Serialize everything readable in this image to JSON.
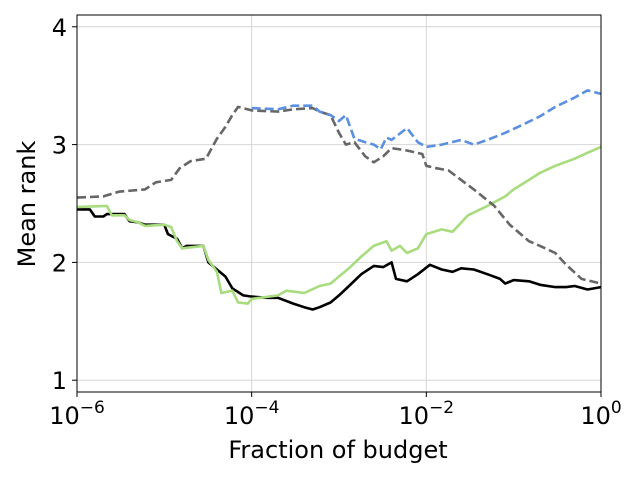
{
  "chart_data": {
    "type": "line",
    "title": "",
    "xlabel": "Fraction of budget",
    "ylabel": "Mean rank",
    "xscale": "log",
    "xlim": [
      1e-06,
      1
    ],
    "ylim": [
      0.9,
      4.1
    ],
    "grid": true,
    "legend": "none",
    "xticks": [
      {
        "value": 1e-06,
        "base": "10",
        "exp": "−6"
      },
      {
        "value": 0.0001,
        "base": "10",
        "exp": "−4"
      },
      {
        "value": 0.01,
        "base": "10",
        "exp": "−2"
      },
      {
        "value": 1,
        "base": "10",
        "exp": "0"
      }
    ],
    "yticks": [
      {
        "value": 1,
        "label": "1"
      },
      {
        "value": 2,
        "label": "2"
      },
      {
        "value": 3,
        "label": "3"
      },
      {
        "value": 4,
        "label": "4"
      }
    ],
    "series": [
      {
        "color": "#000000",
        "dash": "solid",
        "width": 2.6,
        "points": [
          [
            1e-06,
            2.45
          ],
          [
            1.4e-06,
            2.45
          ],
          [
            1.6e-06,
            2.39
          ],
          [
            2e-06,
            2.39
          ],
          [
            2.2e-06,
            2.41
          ],
          [
            3.5e-06,
            2.41
          ],
          [
            4e-06,
            2.35
          ],
          [
            5e-06,
            2.34
          ],
          [
            6e-06,
            2.32
          ],
          [
            1e-05,
            2.32
          ],
          [
            1.1e-05,
            2.24
          ],
          [
            1.4e-05,
            2.2
          ],
          [
            1.6e-05,
            2.12
          ],
          [
            1.8e-05,
            2.14
          ],
          [
            2.8e-05,
            2.14
          ],
          [
            3.2e-05,
            2.0
          ],
          [
            4e-05,
            1.94
          ],
          [
            5e-05,
            1.88
          ],
          [
            6e-05,
            1.78
          ],
          [
            8e-05,
            1.72
          ],
          [
            0.0001,
            1.71
          ],
          [
            0.00015,
            1.7
          ],
          [
            0.0002,
            1.7
          ],
          [
            0.0003,
            1.65
          ],
          [
            0.0004,
            1.62
          ],
          [
            0.0005,
            1.6
          ],
          [
            0.0006,
            1.62
          ],
          [
            0.0008,
            1.66
          ],
          [
            0.001,
            1.72
          ],
          [
            0.0013,
            1.8
          ],
          [
            0.0018,
            1.9
          ],
          [
            0.0025,
            1.97
          ],
          [
            0.0032,
            1.96
          ],
          [
            0.004,
            2.0
          ],
          [
            0.0045,
            1.86
          ],
          [
            0.006,
            1.84
          ],
          [
            0.008,
            1.9
          ],
          [
            0.011,
            1.98
          ],
          [
            0.015,
            1.94
          ],
          [
            0.02,
            1.92
          ],
          [
            0.025,
            1.95
          ],
          [
            0.035,
            1.94
          ],
          [
            0.05,
            1.9
          ],
          [
            0.07,
            1.86
          ],
          [
            0.08,
            1.82
          ],
          [
            0.1,
            1.85
          ],
          [
            0.15,
            1.84
          ],
          [
            0.2,
            1.81
          ],
          [
            0.3,
            1.79
          ],
          [
            0.4,
            1.79
          ],
          [
            0.5,
            1.8
          ],
          [
            0.7,
            1.77
          ],
          [
            1,
            1.79
          ]
        ]
      },
      {
        "color": "#a8dc7e",
        "dash": "solid",
        "width": 2.6,
        "points": [
          [
            1e-06,
            2.47
          ],
          [
            2.2e-06,
            2.48
          ],
          [
            2.5e-06,
            2.4
          ],
          [
            3.5e-06,
            2.4
          ],
          [
            4e-06,
            2.36
          ],
          [
            5e-06,
            2.34
          ],
          [
            6e-06,
            2.31
          ],
          [
            1e-05,
            2.32
          ],
          [
            1.2e-05,
            2.3
          ],
          [
            1.4e-05,
            2.18
          ],
          [
            1.6e-05,
            2.12
          ],
          [
            2.8e-05,
            2.14
          ],
          [
            3.2e-05,
            2.02
          ],
          [
            4e-05,
            1.92
          ],
          [
            4.5e-05,
            1.74
          ],
          [
            6e-05,
            1.76
          ],
          [
            7e-05,
            1.66
          ],
          [
            9e-05,
            1.65
          ],
          [
            0.0001,
            1.69
          ],
          [
            0.0002,
            1.72
          ],
          [
            0.00025,
            1.76
          ],
          [
            0.0004,
            1.74
          ],
          [
            0.0006,
            1.8
          ],
          [
            0.0008,
            1.82
          ],
          [
            0.001,
            1.88
          ],
          [
            0.0013,
            1.95
          ],
          [
            0.0018,
            2.05
          ],
          [
            0.0025,
            2.14
          ],
          [
            0.0035,
            2.18
          ],
          [
            0.004,
            2.1
          ],
          [
            0.005,
            2.14
          ],
          [
            0.006,
            2.08
          ],
          [
            0.008,
            2.12
          ],
          [
            0.01,
            2.24
          ],
          [
            0.015,
            2.28
          ],
          [
            0.02,
            2.26
          ],
          [
            0.03,
            2.4
          ],
          [
            0.05,
            2.48
          ],
          [
            0.08,
            2.56
          ],
          [
            0.1,
            2.62
          ],
          [
            0.15,
            2.7
          ],
          [
            0.2,
            2.76
          ],
          [
            0.3,
            2.82
          ],
          [
            0.5,
            2.88
          ],
          [
            0.7,
            2.93
          ],
          [
            1,
            2.98
          ]
        ]
      },
      {
        "color": "#666666",
        "dash": "dashed",
        "width": 2.6,
        "points": [
          [
            1e-06,
            2.55
          ],
          [
            2e-06,
            2.56
          ],
          [
            3e-06,
            2.6
          ],
          [
            6e-06,
            2.62
          ],
          [
            8e-06,
            2.68
          ],
          [
            1.2e-05,
            2.7
          ],
          [
            1.5e-05,
            2.8
          ],
          [
            2e-05,
            2.86
          ],
          [
            3e-05,
            2.88
          ],
          [
            4e-05,
            3.05
          ],
          [
            5e-05,
            3.15
          ],
          [
            6e-05,
            3.25
          ],
          [
            7e-05,
            3.32
          ],
          [
            0.0001,
            3.29
          ],
          [
            0.0002,
            3.28
          ],
          [
            0.0003,
            3.3
          ],
          [
            0.0005,
            3.31
          ],
          [
            0.0006,
            3.28
          ],
          [
            0.0008,
            3.25
          ],
          [
            0.001,
            3.1
          ],
          [
            0.0012,
            3.0
          ],
          [
            0.0015,
            3.02
          ],
          [
            0.002,
            2.9
          ],
          [
            0.0025,
            2.85
          ],
          [
            0.0032,
            2.9
          ],
          [
            0.004,
            2.97
          ],
          [
            0.006,
            2.95
          ],
          [
            0.009,
            2.92
          ],
          [
            0.01,
            2.82
          ],
          [
            0.013,
            2.8
          ],
          [
            0.018,
            2.78
          ],
          [
            0.025,
            2.7
          ],
          [
            0.035,
            2.62
          ],
          [
            0.06,
            2.48
          ],
          [
            0.09,
            2.32
          ],
          [
            0.15,
            2.18
          ],
          [
            0.2,
            2.14
          ],
          [
            0.3,
            2.08
          ],
          [
            0.4,
            1.98
          ],
          [
            0.6,
            1.86
          ],
          [
            1,
            1.82
          ]
        ]
      },
      {
        "color": "#5b8fe0",
        "dash": "dashed",
        "width": 2.6,
        "points": [
          [
            0.0001,
            3.31
          ],
          [
            0.0002,
            3.3
          ],
          [
            0.0003,
            3.33
          ],
          [
            0.0005,
            3.33
          ],
          [
            0.0006,
            3.28
          ],
          [
            0.0008,
            3.25
          ],
          [
            0.001,
            3.2
          ],
          [
            0.0012,
            3.25
          ],
          [
            0.0015,
            3.05
          ],
          [
            0.002,
            3.02
          ],
          [
            0.0025,
            3.0
          ],
          [
            0.003,
            2.96
          ],
          [
            0.0035,
            3.06
          ],
          [
            0.004,
            3.04
          ],
          [
            0.006,
            3.14
          ],
          [
            0.008,
            3.02
          ],
          [
            0.01,
            2.98
          ],
          [
            0.015,
            3.0
          ],
          [
            0.025,
            3.04
          ],
          [
            0.035,
            3.0
          ],
          [
            0.05,
            3.04
          ],
          [
            0.08,
            3.1
          ],
          [
            0.12,
            3.16
          ],
          [
            0.2,
            3.24
          ],
          [
            0.3,
            3.32
          ],
          [
            0.5,
            3.4
          ],
          [
            0.7,
            3.46
          ],
          [
            1,
            3.43
          ]
        ]
      }
    ]
  }
}
